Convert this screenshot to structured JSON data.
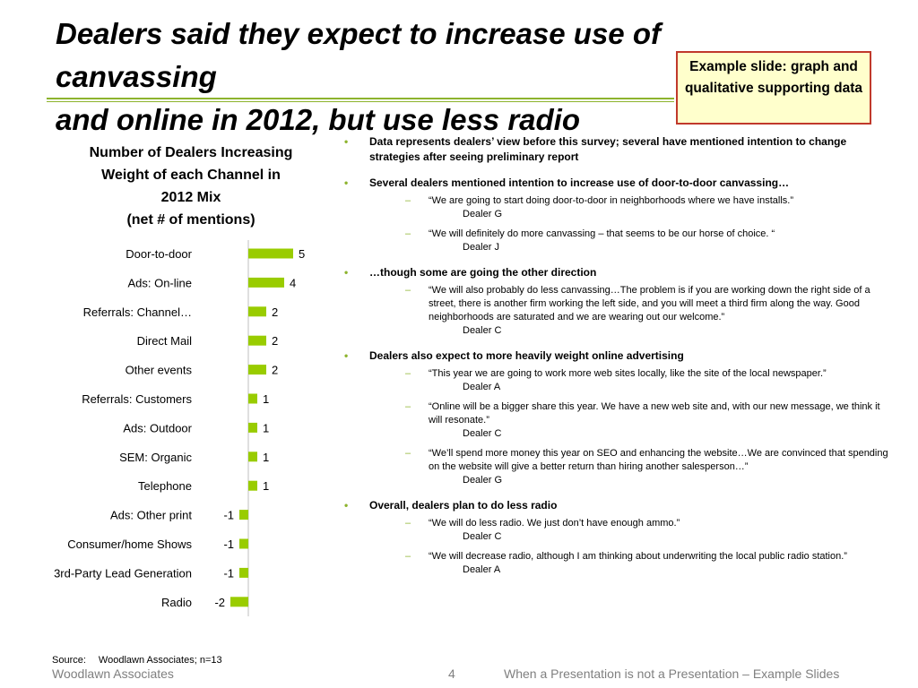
{
  "slide": {
    "title_line1": "Dealers said they expect to increase use of canvassing",
    "title_line2": "and online in 2012, but use less radio",
    "callout": "Example slide: graph and qualitative supporting data",
    "chart_title_lines": [
      "Number of Dealers Increasing",
      "Weight of each Channel in",
      "2012 Mix",
      "(net # of mentions)"
    ],
    "source_label": "Source:",
    "source_text": "Woodlawn Associates; n=13",
    "footer_left": "Woodlawn Associates",
    "footer_page": "4",
    "footer_right": "When a Presentation is not a Presentation – Example Slides",
    "colors": {
      "accent": "#99cc00",
      "rule": "#8db32d",
      "callout_border": "#c0392b",
      "callout_bg": "#ffffcc"
    }
  },
  "chart_data": {
    "type": "bar",
    "orientation": "horizontal",
    "title": "Number of Dealers Increasing Weight of each Channel in 2012 Mix (net # of mentions)",
    "categories": [
      "Door-to-door",
      "Ads: On-line",
      "Referrals: Channel…",
      "Direct Mail",
      "Other events",
      "Referrals: Customers",
      "Ads: Outdoor",
      "SEM: Organic",
      "Telephone",
      "Ads: Other print",
      "Consumer/home Shows",
      "3rd-Party Lead Generation",
      "Radio"
    ],
    "values": [
      5,
      4,
      2,
      2,
      2,
      1,
      1,
      1,
      1,
      -1,
      -1,
      -1,
      -2
    ],
    "xlim": [
      -2,
      5
    ],
    "grid": false,
    "legend": "none",
    "bar_color": "#99cc00"
  },
  "bullets": [
    {
      "text": "Data represents dealers’ view before this survey; several have mentioned intention to change strategies after seeing preliminary report",
      "subs": []
    },
    {
      "text": "Several dealers mentioned intention to increase use of door-to-door canvassing…",
      "subs": [
        {
          "quote": "“We are going to start doing door-to-door in neighborhoods where we have installs.”",
          "attr": "Dealer G"
        },
        {
          "quote": "“We will definitely do more canvassing – that seems to be our horse of choice. “",
          "attr": "Dealer J"
        }
      ]
    },
    {
      "text": "…though some are going the other direction",
      "subs": [
        {
          "quote": "“We will also probably do less canvassing…The problem is if you are working down the right side of a street, there is another firm working the left side, and you will meet a third firm along the way. Good neighborhoods are saturated and we are wearing out our welcome.”",
          "attr": "Dealer C"
        }
      ]
    },
    {
      "text": "Dealers also expect to more heavily weight online advertising",
      "subs": [
        {
          "quote": "“This year we are going to work more web sites locally, like the site of the local newspaper.”",
          "attr": "Dealer A"
        },
        {
          "quote": "“Online will be a bigger share this year. We have a new web site and, with our new message, we think it will resonate.”",
          "attr": "Dealer C"
        },
        {
          "quote": "“We’ll spend more money this year on SEO and enhancing the website…We are convinced that spending on the website will give a better return than hiring another salesperson…”",
          "attr": "Dealer G"
        }
      ]
    },
    {
      "text": "Overall, dealers plan to do less radio",
      "subs": [
        {
          "quote": "“We will do less radio. We just don’t have enough ammo.”",
          "attr": "Dealer C"
        },
        {
          "quote": "“We will decrease radio, although I am thinking about underwriting the local public radio station.”",
          "attr": "Dealer A"
        }
      ]
    }
  ]
}
